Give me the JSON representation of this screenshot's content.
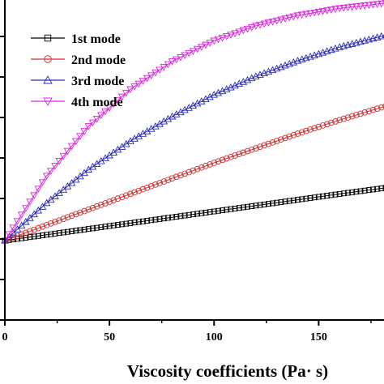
{
  "chart_data": {
    "type": "line",
    "xlabel": "Viscosity coefficients (Pa· s)",
    "ylabel": "",
    "title": "",
    "xlim": [
      0,
      182
    ],
    "ylim": [
      0,
      1
    ],
    "x_ticks": [
      0,
      50,
      100,
      150
    ],
    "x_tick_labels": [
      "0",
      "50",
      "100",
      "150"
    ],
    "y_tick_count": 9,
    "legend_position": "top-left",
    "grid": false,
    "x": [
      0,
      20,
      40,
      60,
      80,
      100,
      120,
      140,
      160,
      182
    ],
    "series": [
      {
        "name": "1st mode",
        "marker": "square",
        "color": "#000000",
        "values": [
          0.245,
          0.263,
          0.281,
          0.299,
          0.317,
          0.335,
          0.353,
          0.371,
          0.389,
          0.408
        ]
      },
      {
        "name": "2nd mode",
        "marker": "circle",
        "color": "#cc3333",
        "values": [
          0.245,
          0.293,
          0.341,
          0.389,
          0.437,
          0.485,
          0.53,
          0.575,
          0.617,
          0.66
        ]
      },
      {
        "name": "3rd mode",
        "marker": "triangle-up",
        "color": "#2a2ab8",
        "values": [
          0.245,
          0.361,
          0.464,
          0.552,
          0.628,
          0.695,
          0.752,
          0.8,
          0.842,
          0.879
        ]
      },
      {
        "name": "4th mode",
        "marker": "triangle-down",
        "color": "#e020e0",
        "values": [
          0.245,
          0.445,
          0.598,
          0.712,
          0.798,
          0.862,
          0.908,
          0.94,
          0.962,
          0.978
        ]
      }
    ]
  }
}
